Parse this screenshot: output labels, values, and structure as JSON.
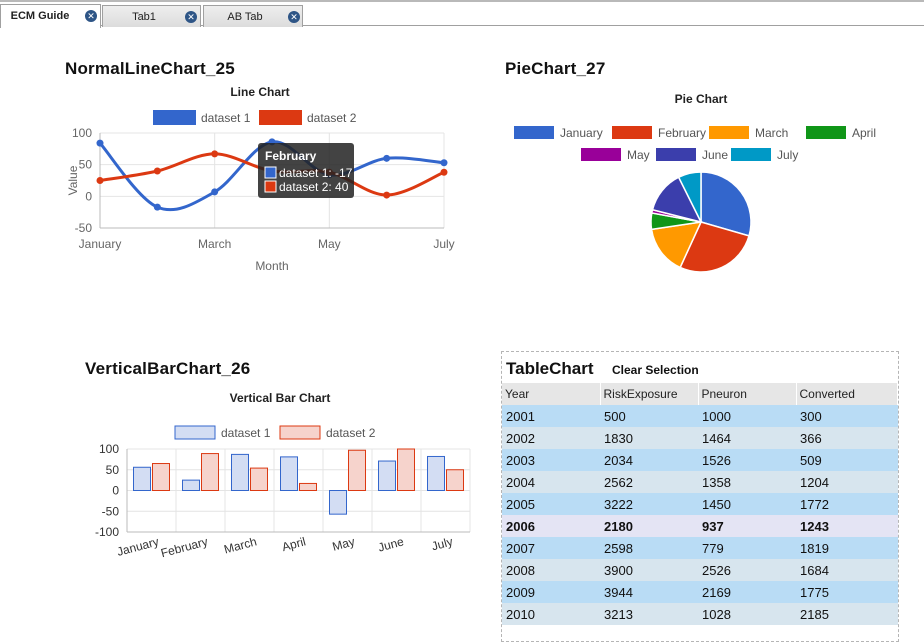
{
  "tabs": [
    {
      "label": "ECM Guide",
      "active": true
    },
    {
      "label": "Tab1",
      "active": false
    },
    {
      "label": "AB Tab",
      "active": false
    }
  ],
  "widgets": {
    "line": {
      "title": "NormalLineChart_25"
    },
    "pie": {
      "title": "PieChart_27"
    },
    "bar": {
      "title": "VerticalBarChart_26"
    },
    "table": {
      "title": "TableChart",
      "clear_label": "Clear Selection"
    }
  },
  "tooltip": {
    "title": "February",
    "lines": [
      "dataset 1: -17",
      "dataset 2: 40"
    ]
  },
  "colors": {
    "blue": "#3366cc",
    "red": "#dc3912",
    "orange": "#ff9900",
    "green": "#109618",
    "purple": "#990099",
    "indigo": "#3b3eac",
    "teal": "#0099c6",
    "bar_blue_fill": "#d3ddf3",
    "bar_red_fill": "#f6d3cc"
  },
  "chart_data": [
    {
      "type": "line",
      "title": "Line Chart",
      "xlabel": "Month",
      "ylabel": "Value",
      "categories": [
        "January",
        "February",
        "March",
        "April",
        "May",
        "June",
        "July"
      ],
      "x_tick_labels": [
        "January",
        "March",
        "May",
        "July"
      ],
      "y_ticks": [
        100,
        50,
        0,
        -50
      ],
      "ylim": [
        -50,
        100
      ],
      "grid": true,
      "legend": "top",
      "series": [
        {
          "name": "dataset 1",
          "color": "#3366cc",
          "values": [
            84,
            -17,
            7,
            86,
            34,
            60,
            53
          ]
        },
        {
          "name": "dataset 2",
          "color": "#dc3912",
          "values": [
            25,
            40,
            67,
            40,
            38,
            2,
            38
          ]
        }
      ]
    },
    {
      "type": "pie",
      "title": "Pie Chart",
      "legend": "top",
      "categories": [
        "January",
        "February",
        "March",
        "April",
        "May",
        "June",
        "July"
      ],
      "colors": [
        "#3366cc",
        "#dc3912",
        "#ff9900",
        "#109618",
        "#990099",
        "#3b3eac",
        "#0099c6"
      ],
      "values": [
        28,
        26,
        15,
        5,
        1,
        13,
        7
      ]
    },
    {
      "type": "bar",
      "title": "Vertical Bar Chart",
      "legend": "top",
      "categories": [
        "January",
        "February",
        "March",
        "April",
        "May",
        "June",
        "July"
      ],
      "y_ticks": [
        100,
        50,
        0,
        -50,
        -100
      ],
      "ylim": [
        -100,
        100
      ],
      "grid": true,
      "series": [
        {
          "name": "dataset 1",
          "color": "#3366cc",
          "values": [
            56,
            25,
            87,
            81,
            -57,
            71,
            82
          ]
        },
        {
          "name": "dataset 2",
          "color": "#dc3912",
          "values": [
            65,
            89,
            54,
            17,
            97,
            100,
            50
          ]
        }
      ]
    },
    {
      "type": "table",
      "columns": [
        "Year",
        "RiskExposure",
        "Pneuron",
        "Converted"
      ],
      "selected_row": 5,
      "rows": [
        [
          "2001",
          "500",
          "1000",
          "300"
        ],
        [
          "2002",
          "1830",
          "1464",
          "366"
        ],
        [
          "2003",
          "2034",
          "1526",
          "509"
        ],
        [
          "2004",
          "2562",
          "1358",
          "1204"
        ],
        [
          "2005",
          "3222",
          "1450",
          "1772"
        ],
        [
          "2006",
          "2180",
          "937",
          "1243"
        ],
        [
          "2007",
          "2598",
          "779",
          "1819"
        ],
        [
          "2008",
          "3900",
          "2526",
          "1684"
        ],
        [
          "2009",
          "3944",
          "2169",
          "1775"
        ],
        [
          "2010",
          "3213",
          "1028",
          "2185"
        ]
      ]
    }
  ]
}
